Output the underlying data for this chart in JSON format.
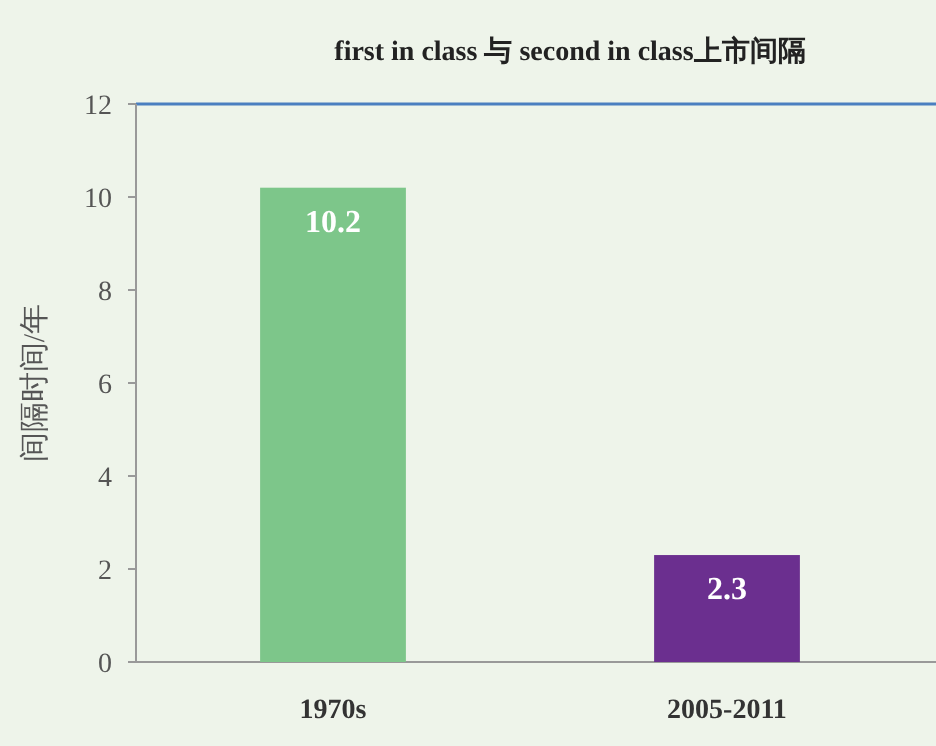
{
  "chart_data": {
    "type": "bar",
    "title": "first in class 与 second in class上市间隔",
    "ylabel": "间隔时间/年",
    "categories": [
      "1970s",
      "2005-2011"
    ],
    "values": [
      10.2,
      2.3
    ],
    "colors": [
      "#7dc68a",
      "#6b2f8f"
    ],
    "ylim": [
      0,
      12
    ],
    "yticks": [
      0,
      2,
      4,
      6,
      8,
      10,
      12
    ],
    "data_labels": true,
    "grid": false
  }
}
